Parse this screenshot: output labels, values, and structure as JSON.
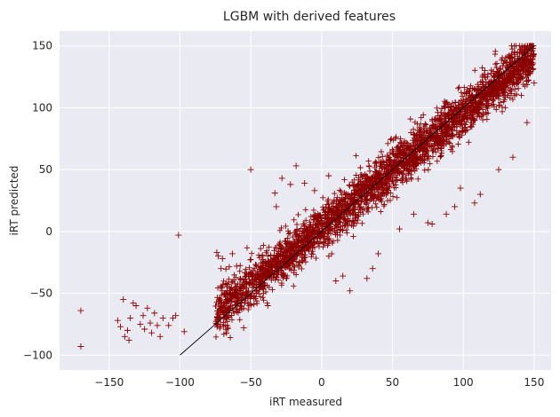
{
  "chart_data": {
    "type": "scatter",
    "title": "LGBM with derived features",
    "xlabel": "iRT measured",
    "ylabel": "iRT predicted",
    "xlim": [
      -185,
      162
    ],
    "ylim": [
      -112,
      162
    ],
    "xticks": [
      -150,
      -100,
      -50,
      0,
      50,
      100,
      150
    ],
    "yticks": [
      -100,
      -50,
      0,
      50,
      100,
      150
    ],
    "grid": true,
    "marker": "+",
    "point_color": "#8b0000",
    "background_color": "#eaeaf2",
    "reference_line": {
      "from": [
        -100,
        -100
      ],
      "to": [
        150,
        150
      ],
      "color": "#000000"
    },
    "bulk": {
      "x_range": [
        -75,
        150
      ],
      "trend_slope": 0.93,
      "trend_intercept": 3,
      "spread": 9
    },
    "points": [
      [
        -170,
        -64
      ],
      [
        -170,
        -93
      ],
      [
        -144,
        -72
      ],
      [
        -142,
        -77
      ],
      [
        -140,
        -55
      ],
      [
        -139,
        -85
      ],
      [
        -137,
        -80
      ],
      [
        -136,
        -88
      ],
      [
        -135,
        -70
      ],
      [
        -133,
        -58
      ],
      [
        -131,
        -60
      ],
      [
        -128,
        -75
      ],
      [
        -126,
        -68
      ],
      [
        -125,
        -79
      ],
      [
        -123,
        -62
      ],
      [
        -121,
        -74
      ],
      [
        -120,
        -82
      ],
      [
        -118,
        -66
      ],
      [
        -116,
        -76
      ],
      [
        -114,
        -85
      ],
      [
        -112,
        -70
      ],
      [
        -108,
        -76
      ],
      [
        -105,
        -70
      ],
      [
        -103,
        -68
      ],
      [
        -101,
        -3
      ],
      [
        -97,
        -81
      ],
      [
        -74,
        -17
      ],
      [
        -73,
        -20
      ],
      [
        -71,
        -30
      ],
      [
        -70,
        -22
      ],
      [
        -63,
        -18
      ],
      [
        -60,
        -28
      ],
      [
        -55,
        -78
      ],
      [
        -45,
        -35
      ],
      [
        -40,
        -30
      ],
      [
        -38,
        -60
      ],
      [
        -33,
        31
      ],
      [
        -32,
        20
      ],
      [
        -28,
        43
      ],
      [
        -22,
        38
      ],
      [
        -18,
        53
      ],
      [
        -12,
        39
      ],
      [
        10,
        -40
      ],
      [
        15,
        -36
      ],
      [
        20,
        -48
      ],
      [
        32,
        -38
      ],
      [
        36,
        -30
      ],
      [
        40,
        -18
      ],
      [
        65,
        14
      ],
      [
        75,
        7
      ],
      [
        78,
        6
      ],
      [
        88,
        14
      ],
      [
        94,
        20
      ],
      [
        108,
        23
      ],
      [
        112,
        30
      ],
      [
        125,
        50
      ],
      [
        135,
        60
      ],
      [
        145,
        88
      ],
      [
        150,
        120
      ],
      [
        -50,
        50
      ],
      [
        -5,
        33
      ],
      [
        5,
        45
      ],
      [
        55,
        2
      ],
      [
        98,
        35
      ],
      [
        -55,
        -62
      ],
      [
        -60,
        -65
      ]
    ]
  }
}
